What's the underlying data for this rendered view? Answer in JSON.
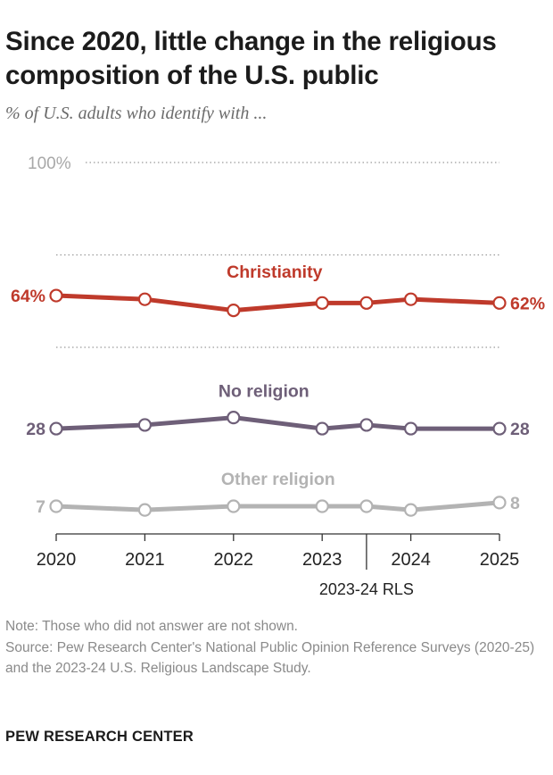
{
  "title": "Since 2020, little change in the religious composition of the U.S. public",
  "subtitle": "% of U.S. adults who identify with ...",
  "note": "Note: Those who did not answer are not shown.",
  "source": "Source: Pew Research Center's National Public Opinion Reference Surveys (2020-25) and the 2023-24 U.S. Religious Landscape Study.",
  "brand": "PEW RESEARCH CENTER",
  "chart_data": {
    "type": "line",
    "x": [
      2020,
      2021,
      2022,
      2023,
      2023.5,
      2024,
      2025
    ],
    "x_tick_labels": [
      "2020",
      "2021",
      "2022",
      "2023",
      "2024",
      "2025"
    ],
    "x_tick_values": [
      2020,
      2021,
      2022,
      2023,
      2024,
      2025
    ],
    "rls_marker": {
      "x": 2023.5,
      "label": "2023-24 RLS"
    },
    "ylim": [
      0,
      100
    ],
    "y_gridlines": [
      100,
      75,
      50
    ],
    "y_top_label": "100%",
    "grid": true,
    "series": [
      {
        "name": "Christianity",
        "color": "#bf3a2b",
        "values": [
          64,
          63,
          60,
          62,
          62,
          63,
          62
        ],
        "start_label": "64%",
        "end_label": "62%"
      },
      {
        "name": "No religion",
        "color": "#6e5f78",
        "values": [
          28,
          29,
          31,
          28,
          29,
          28,
          28
        ],
        "start_label": "28",
        "end_label": "28"
      },
      {
        "name": "Other religion",
        "color": "#b3b3b3",
        "values": [
          7,
          6,
          7,
          7,
          7,
          6,
          8
        ],
        "start_label": "7",
        "end_label": "8"
      }
    ]
  }
}
